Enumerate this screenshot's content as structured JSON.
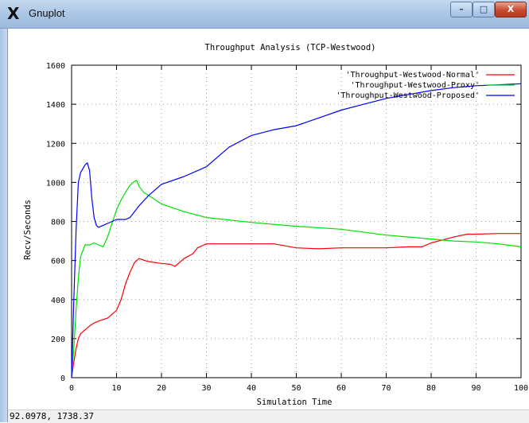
{
  "window": {
    "title": "Gnuplot",
    "app_icon": "X",
    "minimize_glyph": "–",
    "maximize_glyph": "□",
    "close_glyph": "X"
  },
  "status": {
    "coordinates": "92.0978,  1738.37"
  },
  "colors": {
    "normal": "#ff0000",
    "proxy": "#00e000",
    "proposed": "#0000ff",
    "grid": "#a0a0a0",
    "axes": "#000000"
  },
  "chart_data": {
    "type": "line",
    "title": "Throughput Analysis (TCP-Westwood)",
    "xlabel": "Simulation Time",
    "ylabel": "Recv/Seconds",
    "xlim": [
      0,
      100
    ],
    "ylim": [
      0,
      1600
    ],
    "xticks": [
      0,
      10,
      20,
      30,
      40,
      50,
      60,
      70,
      80,
      90,
      100
    ],
    "yticks": [
      0,
      200,
      400,
      600,
      800,
      1000,
      1200,
      1400,
      1600
    ],
    "grid": true,
    "legend_position": "top-right",
    "series": [
      {
        "name": "'Throughput-Westwood-Normal'",
        "color": "#ff0000",
        "x": [
          0,
          0.5,
          1,
          1.5,
          2,
          3,
          4,
          5,
          6,
          8,
          10,
          11,
          12,
          13,
          14,
          15,
          17,
          20,
          22,
          23,
          25,
          27,
          28,
          30,
          35,
          45,
          50,
          55,
          60,
          70,
          75,
          78,
          80,
          85,
          88,
          90,
          95,
          100
        ],
        "y": [
          0,
          80,
          150,
          200,
          225,
          245,
          265,
          280,
          290,
          305,
          345,
          400,
          480,
          540,
          590,
          610,
          595,
          585,
          580,
          570,
          610,
          635,
          665,
          685,
          685,
          685,
          665,
          660,
          665,
          665,
          670,
          670,
          690,
          720,
          735,
          735,
          738,
          738
        ]
      },
      {
        "name": "'Throughput-Westwood-Proxy'",
        "color": "#00e000",
        "x": [
          0,
          0.5,
          1,
          1.5,
          2,
          3,
          4,
          5,
          6,
          7,
          8,
          9,
          10,
          11,
          12,
          13,
          14,
          14.5,
          15,
          16,
          18,
          20,
          25,
          30,
          40,
          50,
          60,
          70,
          80,
          85,
          90,
          95,
          100
        ],
        "y": [
          0,
          150,
          350,
          510,
          620,
          680,
          680,
          690,
          680,
          670,
          720,
          790,
          860,
          910,
          950,
          985,
          1005,
          1010,
          980,
          950,
          920,
          890,
          850,
          820,
          795,
          775,
          760,
          730,
          710,
          700,
          695,
          685,
          670
        ]
      },
      {
        "name": "'Throughput-Westwood-Proposed'",
        "color": "#0000ff",
        "x": [
          0,
          0.5,
          1,
          1.5,
          2,
          2.5,
          3,
          3.5,
          4,
          4.5,
          5,
          5.5,
          6,
          7,
          8,
          9,
          10,
          11,
          12,
          13,
          14,
          15,
          17,
          20,
          25,
          30,
          35,
          40,
          45,
          50,
          55,
          60,
          65,
          70,
          75,
          80,
          85,
          90,
          95,
          100
        ],
        "y": [
          0,
          400,
          760,
          1000,
          1050,
          1070,
          1090,
          1100,
          1060,
          920,
          820,
          780,
          770,
          780,
          790,
          800,
          810,
          810,
          810,
          820,
          850,
          880,
          930,
          990,
          1030,
          1080,
          1180,
          1240,
          1270,
          1290,
          1330,
          1370,
          1400,
          1430,
          1450,
          1470,
          1485,
          1495,
          1500,
          1505
        ]
      }
    ]
  }
}
